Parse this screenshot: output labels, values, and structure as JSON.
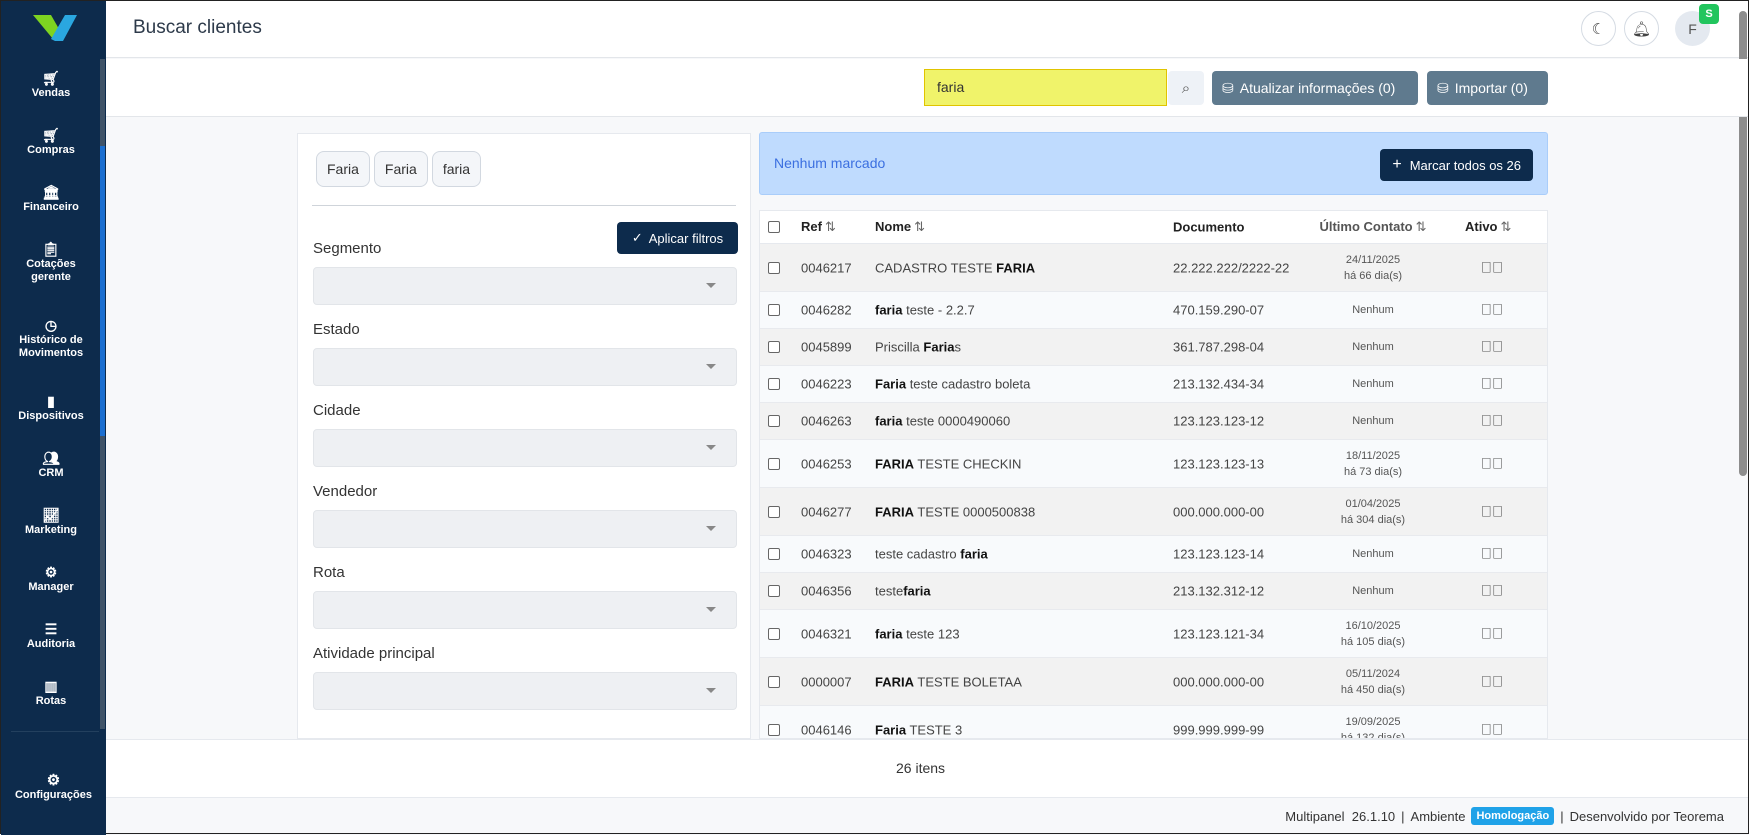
{
  "sidebar": {
    "items": [
      {
        "label": "Vendas",
        "icon": "cart-icon"
      },
      {
        "label": "Compras",
        "icon": "cart-icon"
      },
      {
        "label": "Financeiro",
        "icon": "bank-icon"
      },
      {
        "label": "Cotações gerente",
        "icon": "clipboard-chart-icon"
      },
      {
        "label": "Histórico de Movimentos",
        "icon": "clock-icon"
      },
      {
        "label": "Dispositivos",
        "icon": "tablet-icon"
      },
      {
        "label": "CRM",
        "icon": "users-icon"
      },
      {
        "label": "Marketing",
        "icon": "line-chart-icon"
      },
      {
        "label": "Manager",
        "icon": "gear-icon"
      },
      {
        "label": "Auditoria",
        "icon": "ledger-icon"
      },
      {
        "label": "Rotas",
        "icon": "map-icon"
      }
    ],
    "config": "Configurações",
    "accent": "#0d2b4c"
  },
  "header": {
    "title": "Buscar clientes",
    "avatar": "F",
    "badge": "S"
  },
  "toolbar": {
    "search_value": "faria",
    "update_label": "Atualizar informações (0)",
    "import_label": "Importar (0)"
  },
  "filters": {
    "chips": [
      "Faria",
      "Faria",
      "faria"
    ],
    "apply_label": "Aplicar filtros",
    "fields": [
      "Segmento",
      "Estado",
      "Cidade",
      "Vendedor",
      "Rota",
      "Atividade principal"
    ]
  },
  "banner": {
    "text": "Nenhum marcado",
    "mark_all": "Marcar todos os 26"
  },
  "table": {
    "columns": [
      "Ref",
      "Nome",
      "Documento",
      "Último Contato",
      "Ativo"
    ],
    "rows": [
      {
        "ref": "0046217",
        "name": {
          "pre": "CADASTRO TESTE ",
          "bold": "FARIA",
          "post": ""
        },
        "doc": "22.222.222/2222-22",
        "date": "24/11/2025",
        "ago": "há 66 dia(s)"
      },
      {
        "ref": "0046282",
        "name": {
          "pre": "",
          "bold": "faria",
          "post": " teste - 2.2.7"
        },
        "doc": "470.159.290-07",
        "contact": "Nenhum"
      },
      {
        "ref": "0045899",
        "name": {
          "pre": "Priscilla ",
          "bold": "Faria",
          "post": "s"
        },
        "doc": "361.787.298-04",
        "contact": "Nenhum"
      },
      {
        "ref": "0046223",
        "name": {
          "pre": "",
          "bold": "Faria",
          "post": " teste cadastro boleta"
        },
        "doc": "213.132.434-34",
        "contact": "Nenhum"
      },
      {
        "ref": "0046263",
        "name": {
          "pre": "",
          "bold": "faria",
          "post": " teste 0000490060"
        },
        "doc": "123.123.123-12",
        "contact": "Nenhum"
      },
      {
        "ref": "0046253",
        "name": {
          "pre": "",
          "bold": "FARIA",
          "post": " TESTE CHECKIN"
        },
        "doc": "123.123.123-13",
        "date": "18/11/2025",
        "ago": "há 73 dia(s)"
      },
      {
        "ref": "0046277",
        "name": {
          "pre": "",
          "bold": "FARIA",
          "post": " TESTE 0000500838"
        },
        "doc": "000.000.000-00",
        "date": "01/04/2025",
        "ago": "há 304 dia(s)"
      },
      {
        "ref": "0046323",
        "name": {
          "pre": "teste cadastro ",
          "bold": "faria",
          "post": ""
        },
        "doc": "123.123.123-14",
        "contact": "Nenhum"
      },
      {
        "ref": "0046356",
        "name": {
          "pre": "teste",
          "bold": "faria",
          "post": ""
        },
        "doc": "213.132.312-12",
        "contact": "Nenhum"
      },
      {
        "ref": "0046321",
        "name": {
          "pre": "",
          "bold": "faria",
          "post": " teste 123"
        },
        "doc": "123.123.121-34",
        "date": "16/10/2025",
        "ago": "há 105 dia(s)"
      },
      {
        "ref": "0000007",
        "name": {
          "pre": "",
          "bold": "FARIA",
          "post": " TESTE BOLETAA"
        },
        "doc": "000.000.000-00",
        "date": "05/11/2024",
        "ago": "há 450 dia(s)"
      },
      {
        "ref": "0046146",
        "name": {
          "pre": "",
          "bold": "Faria",
          "post": " TESTE 3"
        },
        "doc": "999.999.999-99",
        "date": "19/09/2025",
        "ago": "há 132 dia(s)"
      }
    ]
  },
  "footer": {
    "count": "26 itens",
    "version": "Multipanel  26.1.10",
    "env_label": "Ambiente",
    "env": "Homologação",
    "dev": "Desenvolvido por Teorema"
  }
}
